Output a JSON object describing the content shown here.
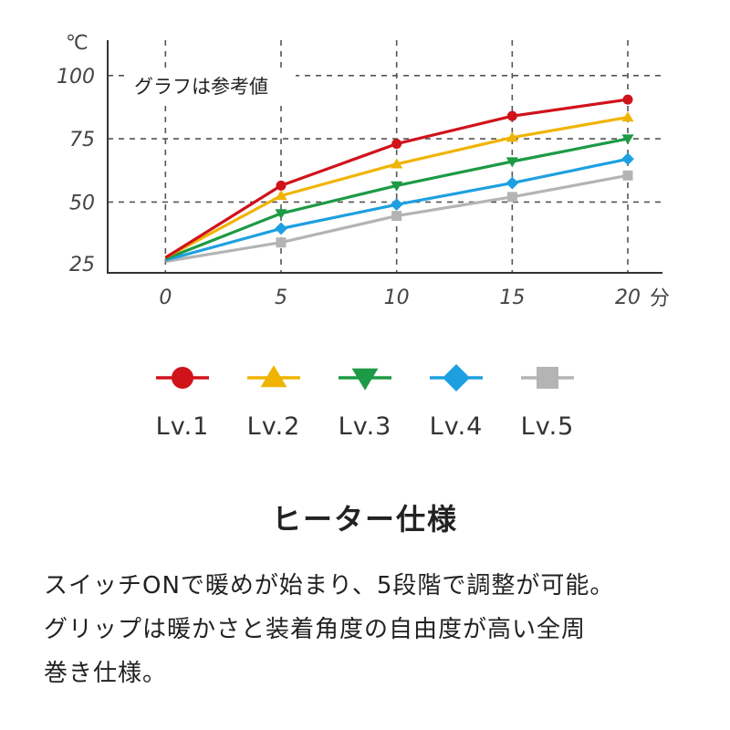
{
  "chart_data": {
    "type": "line",
    "title": "",
    "xlabel": "分",
    "ylabel": "℃",
    "annotation": "グラフは参考値",
    "x": [
      0,
      5,
      10,
      15,
      20
    ],
    "x_ticks": [
      "0",
      "5",
      "10",
      "15",
      "20"
    ],
    "y_ticks": [
      "100",
      "75",
      "50",
      "25"
    ],
    "xlim": [
      -2.5,
      21.5
    ],
    "ylim": [
      22,
      114
    ],
    "grid": true,
    "legend_position": "bottom",
    "series": [
      {
        "name": "Lv.1",
        "values": [
          28,
          56.5,
          73,
          84,
          90.5
        ],
        "color": "#d0121b",
        "marker": "circle"
      },
      {
        "name": "Lv.2",
        "values": [
          28,
          52.5,
          65,
          75.5,
          83.5
        ],
        "color": "#f0b400",
        "marker": "triangle-up"
      },
      {
        "name": "Lv.3",
        "values": [
          27.5,
          45.5,
          56.5,
          66,
          75
        ],
        "color": "#1d9a45",
        "marker": "triangle-down"
      },
      {
        "name": "Lv.4",
        "values": [
          27,
          39.5,
          49,
          57.5,
          67
        ],
        "color": "#1ea0e0",
        "marker": "diamond"
      },
      {
        "name": "Lv.5",
        "values": [
          26.5,
          34,
          44.5,
          52,
          60.5
        ],
        "color": "#b4b4b4",
        "marker": "square"
      }
    ]
  },
  "heading": "ヒーター仕様",
  "description": {
    "line1": "スイッチONで暖めが始まり、5段階で調整が可能。",
    "line2": "グリップは暖かさと装着角度の自由度が高い全周",
    "line3": "巻き仕様。"
  }
}
